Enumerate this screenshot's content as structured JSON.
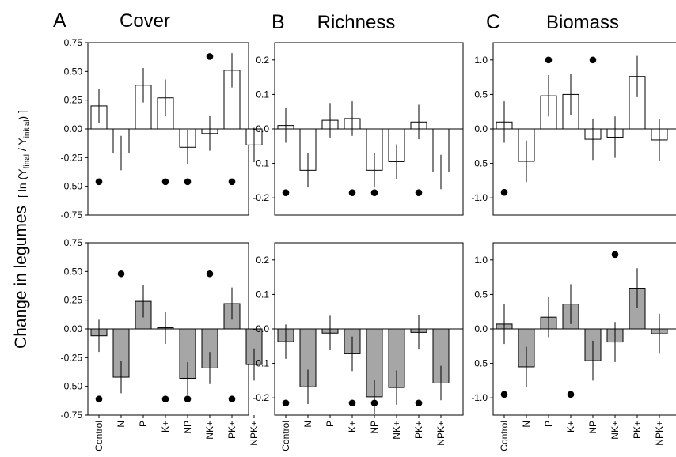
{
  "y_axis_label": "Change in legumes",
  "y_axis_formula": {
    "open": "[ ln (Y",
    "sub1": "final",
    "mid": " / Y",
    "sub2": "initial",
    "close": ") ]"
  },
  "treatments": [
    "Control",
    "N",
    "P",
    "K+",
    "NP",
    "NK+",
    "PK+",
    "NPK+"
  ],
  "colors": {
    "top_bar_fill": "#ffffff",
    "bottom_bar_fill": "#a6a6a6",
    "stroke": "#000000"
  },
  "chart_data": [
    {
      "panel": "A",
      "type": "bar",
      "title": "Cover",
      "row": "top",
      "categories": [
        "Control",
        "N",
        "P",
        "K+",
        "NP",
        "NK+",
        "PK+",
        "NPK+"
      ],
      "values": [
        0.2,
        -0.21,
        0.38,
        0.27,
        -0.16,
        -0.04,
        0.51,
        -0.14
      ],
      "errors": [
        0.15,
        0.15,
        0.15,
        0.16,
        0.15,
        0.15,
        0.15,
        0.15
      ],
      "markers": [
        -0.46,
        null,
        null,
        -0.46,
        -0.46,
        0.63,
        -0.46,
        null
      ],
      "ylim": [
        -0.75,
        0.75
      ],
      "yticks": [
        "0.75",
        "0.50",
        "0.25",
        "0.00",
        "-0.25",
        "-0.50",
        "-0.75"
      ]
    },
    {
      "panel": "B",
      "type": "bar",
      "title": "Richness",
      "row": "top",
      "categories": [
        "Control",
        "N",
        "P",
        "K+",
        "NP",
        "NK+",
        "PK+",
        "NPK+"
      ],
      "values": [
        0.01,
        -0.12,
        0.025,
        0.03,
        -0.12,
        -0.095,
        0.02,
        -0.125
      ],
      "errors": [
        0.05,
        0.05,
        0.05,
        0.05,
        0.05,
        0.05,
        0.05,
        0.05
      ],
      "markers": [
        -0.185,
        null,
        null,
        -0.185,
        -0.185,
        null,
        -0.185,
        null
      ],
      "ylim": [
        -0.25,
        0.25
      ],
      "yticks": [
        "0.2",
        "0.1",
        "-0.0",
        "-0.1",
        "-0.2"
      ]
    },
    {
      "panel": "C",
      "type": "bar",
      "title": "Biomass",
      "row": "top",
      "categories": [
        "Control",
        "N",
        "P",
        "K+",
        "NP",
        "NK+",
        "PK+",
        "NPK+"
      ],
      "values": [
        0.1,
        -0.47,
        0.48,
        0.5,
        -0.15,
        -0.12,
        0.76,
        -0.16
      ],
      "errors": [
        0.3,
        0.3,
        0.3,
        0.3,
        0.3,
        0.3,
        0.3,
        0.3
      ],
      "markers": [
        -0.92,
        null,
        1.0,
        null,
        1.0,
        null,
        null,
        null
      ],
      "ylim": [
        -1.25,
        1.25
      ],
      "yticks": [
        "1.0",
        "0.5",
        "0.0",
        "-0.5",
        "-1.0"
      ]
    },
    {
      "panel": "A",
      "type": "bar",
      "title": "",
      "row": "bottom",
      "categories": [
        "Control",
        "N",
        "P",
        "K+",
        "NP",
        "NK+",
        "PK+",
        "NPK+"
      ],
      "values": [
        -0.06,
        -0.42,
        0.24,
        0.01,
        -0.43,
        -0.34,
        0.22,
        -0.31
      ],
      "errors": [
        0.14,
        0.14,
        0.14,
        0.14,
        0.14,
        0.14,
        0.14,
        0.14
      ],
      "markers": [
        -0.61,
        0.48,
        null,
        -0.61,
        -0.61,
        0.48,
        -0.61,
        null
      ],
      "ylim": [
        -0.75,
        0.75
      ],
      "yticks": [
        "0.75",
        "0.50",
        "0.25",
        "0.00",
        "-0.25",
        "-0.50",
        "-0.75"
      ]
    },
    {
      "panel": "B",
      "type": "bar",
      "title": "",
      "row": "bottom",
      "categories": [
        "Control",
        "N",
        "P",
        "K+",
        "NP",
        "NK+",
        "PK+",
        "NPK+"
      ],
      "values": [
        -0.037,
        -0.168,
        -0.012,
        -0.072,
        -0.197,
        -0.17,
        -0.01,
        -0.157
      ],
      "errors": [
        0.05,
        0.05,
        0.05,
        0.05,
        0.05,
        0.05,
        0.05,
        0.05
      ],
      "markers": [
        -0.215,
        null,
        null,
        -0.215,
        -0.215,
        null,
        -0.215,
        null
      ],
      "ylim": [
        -0.25,
        0.25
      ],
      "yticks": [
        "0.2",
        "0.1",
        "-0.0",
        "-0.1",
        "-0.2"
      ]
    },
    {
      "panel": "C",
      "type": "bar",
      "title": "",
      "row": "bottom",
      "categories": [
        "Control",
        "N",
        "P",
        "K+",
        "NP",
        "NK+",
        "PK+",
        "NPK+"
      ],
      "values": [
        0.07,
        -0.55,
        0.17,
        0.36,
        -0.46,
        -0.19,
        0.59,
        -0.07
      ],
      "errors": [
        0.29,
        0.29,
        0.29,
        0.29,
        0.29,
        0.29,
        0.29,
        0.29
      ],
      "markers": [
        -0.95,
        null,
        null,
        -0.95,
        null,
        1.08,
        null,
        null
      ],
      "ylim": [
        -1.25,
        1.25
      ],
      "yticks": [
        "1.0",
        "0.5",
        "0.0",
        "-0.5",
        "-1.0"
      ]
    }
  ]
}
